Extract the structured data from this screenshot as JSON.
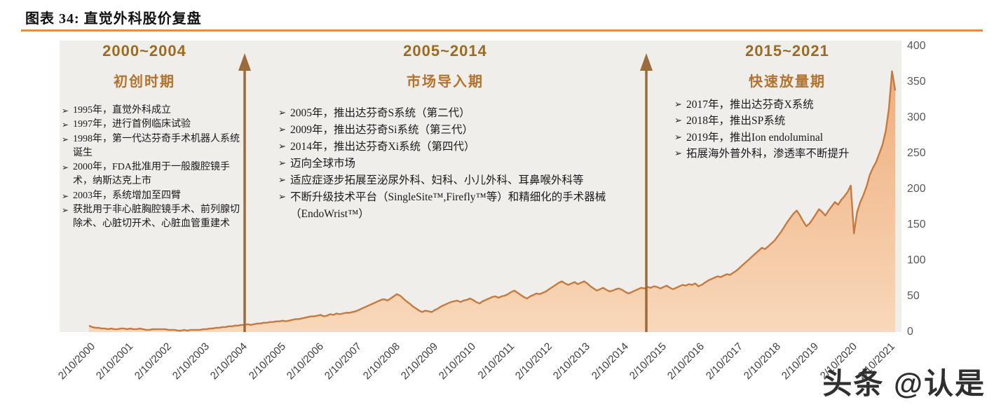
{
  "header": {
    "title": "图表 34: 直觉外科股价复盘"
  },
  "bullet_char": "➢",
  "watermark": "头条 @认是",
  "colors": {
    "accent_rule": "#e2903e",
    "plot_bg": "#f0eeeb",
    "line": "#c57a40",
    "fill_top": "#efae7d",
    "fill_bottom": "#f8d8ba",
    "arrow": "#9b6b3b",
    "period_range": "#9c6b1d",
    "period_name": "#b5722b",
    "axis_text": "#595959",
    "watermark": "#2f2f2f"
  },
  "periods": [
    {
      "range": "2000~2004",
      "name": "初创时期",
      "items": [
        "1995年，直觉外科成立",
        "1997年，进行首例临床试验",
        "1998年，第一代达芬奇手术机器人系统诞生",
        "2000年，FDA批准用于一般腹腔镜手术，纳斯达克上市",
        "2003年，系统增加至四臂",
        "获批用于非心脏胸腔镜手术、前列腺切除术、心脏切开术、心脏血管重建术"
      ]
    },
    {
      "range": "2005~2014",
      "name": "市场导入期",
      "items": [
        "2005年，推出达芬奇S系统（第二代）",
        "2009年，推出达芬奇Si系统（第三代）",
        "2014年，推出达芬奇Xi系统（第四代）",
        "迈向全球市场",
        "适应症逐步拓展至泌尿外科、妇科、小儿外科、耳鼻喉外科等",
        "不断升级技术平台（SingleSite™,Firefly™等）和精细化的手术器械（EndoWrist™）"
      ]
    },
    {
      "range": "2015~2021",
      "name": "快速放量期",
      "items": [
        "2017年，推出达芬奇X系统",
        "2018年，推出SP系统",
        "2019年，推出Ion endoluminal",
        "拓展海外普外科，渗透率不断提升"
      ]
    }
  ],
  "chart_data": {
    "type": "area",
    "title": "直觉外科股价复盘",
    "xlabel": "",
    "ylabel": "",
    "grid": false,
    "legend_position": "none",
    "ylim": [
      0,
      400
    ],
    "y_ticks": [
      0,
      50,
      100,
      150,
      200,
      250,
      300,
      350,
      400
    ],
    "x_labels": [
      "2/10/2000",
      "2/10/2001",
      "2/10/2002",
      "2/10/2003",
      "2/10/2004",
      "2/10/2005",
      "2/10/2006",
      "2/10/2007",
      "2/10/2008",
      "2/10/2009",
      "2/10/2010",
      "2/10/2011",
      "2/10/2012",
      "2/10/2013",
      "2/10/2014",
      "2/10/2015",
      "2/10/2016",
      "2/10/2017",
      "2/10/2018",
      "2/10/2019",
      "2/10/2020",
      "2/10/2021"
    ],
    "points_per_label": 12,
    "values": [
      9,
      7,
      6,
      6,
      5,
      5,
      4,
      5,
      4,
      4,
      5,
      5,
      4,
      5,
      4,
      4,
      5,
      4,
      3,
      3,
      4,
      4,
      4,
      4,
      4,
      3,
      3,
      3,
      2,
      2,
      3,
      2,
      3,
      3,
      3,
      3,
      4,
      4,
      5,
      5,
      6,
      6,
      7,
      7,
      8,
      8,
      9,
      9,
      10,
      10,
      11,
      10,
      11,
      12,
      12,
      13,
      13,
      14,
      14,
      15,
      15,
      16,
      15,
      16,
      17,
      18,
      18,
      19,
      20,
      21,
      22,
      22,
      23,
      24,
      22,
      23,
      25,
      24,
      26,
      25,
      26,
      27,
      27,
      28,
      29,
      31,
      33,
      35,
      37,
      39,
      41,
      43,
      45,
      46,
      44,
      47,
      50,
      53,
      51,
      47,
      43,
      40,
      36,
      33,
      30,
      28,
      30,
      29,
      28,
      31,
      33,
      36,
      38,
      40,
      42,
      43,
      44,
      42,
      44,
      45,
      47,
      45,
      42,
      40,
      43,
      45,
      47,
      49,
      50,
      48,
      50,
      51,
      53,
      56,
      58,
      55,
      52,
      49,
      47,
      50,
      52,
      54,
      53,
      55,
      57,
      60,
      63,
      66,
      69,
      71,
      68,
      66,
      68,
      70,
      67,
      69,
      71,
      68,
      64,
      61,
      58,
      60,
      62,
      59,
      57,
      58,
      60,
      61,
      59,
      56,
      54,
      56,
      58,
      60,
      62,
      61,
      63,
      62,
      64,
      63,
      61,
      63,
      65,
      62,
      60,
      62,
      64,
      66,
      65,
      67,
      66,
      68,
      64,
      66,
      69,
      72,
      74,
      76,
      78,
      77,
      79,
      81,
      80,
      83,
      86,
      90,
      94,
      98,
      102,
      106,
      110,
      114,
      118,
      116,
      120,
      124,
      128,
      134,
      140,
      147,
      154,
      160,
      166,
      170,
      163,
      155,
      148,
      152,
      158,
      165,
      172,
      168,
      163,
      170,
      176,
      182,
      178,
      185,
      190,
      196,
      205,
      138,
      168,
      182,
      192,
      204,
      220,
      230,
      238,
      250,
      262,
      281,
      312,
      365,
      338
    ]
  }
}
